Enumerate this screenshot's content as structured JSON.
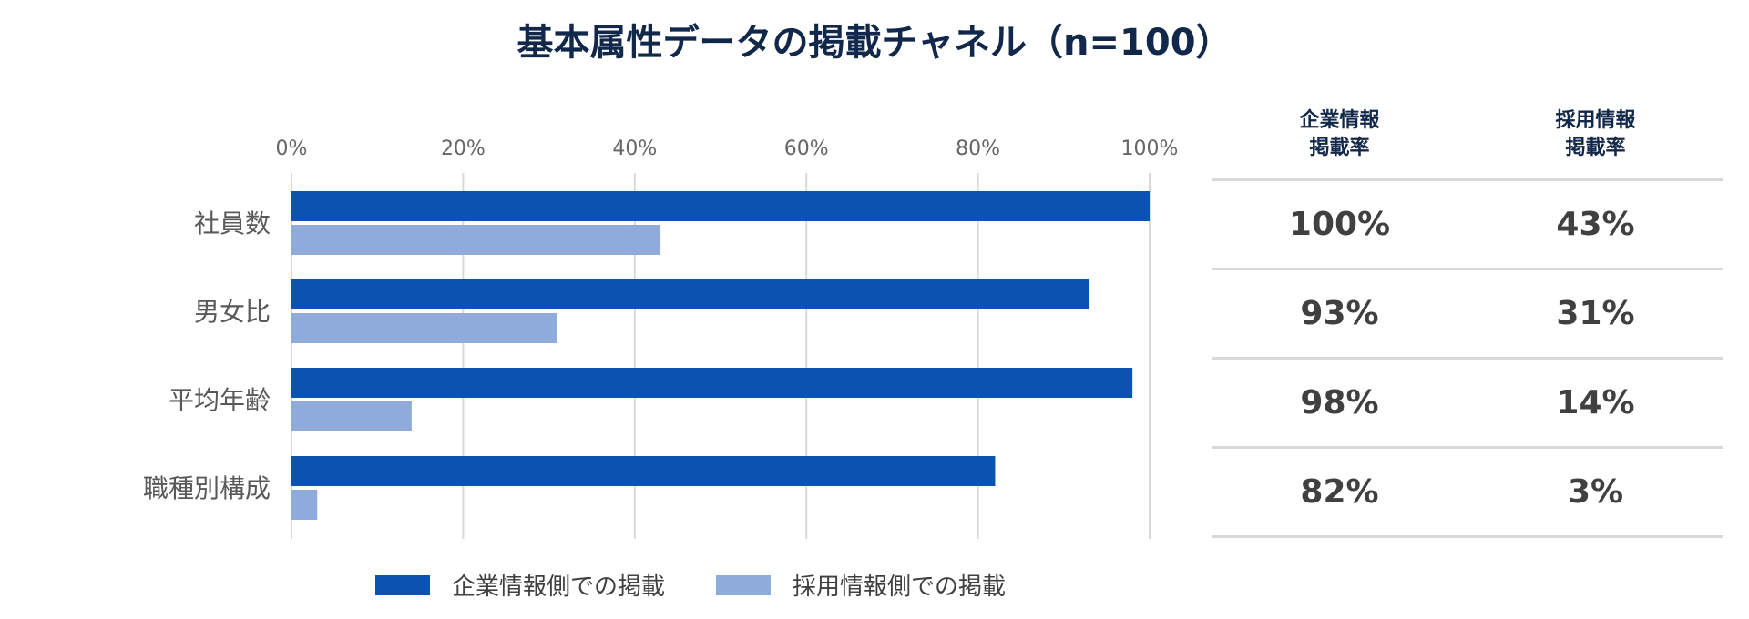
{
  "title": "基本属性データの掲載チャネル（n=100）",
  "colors": {
    "series1": "#0a54b0",
    "series2": "#8fabdc",
    "grid": "#d9d9d9",
    "title": "#12284a"
  },
  "chart_data": {
    "type": "bar",
    "orientation": "horizontal",
    "title": "基本属性データの掲載チャネル（n=100）",
    "categories": [
      "社員数",
      "男女比",
      "平均年齢",
      "職種別構成"
    ],
    "series": [
      {
        "name": "企業情報側での掲載",
        "values": [
          100,
          93,
          98,
          82
        ]
      },
      {
        "name": "採用情報側での掲載",
        "values": [
          43,
          31,
          14,
          3
        ]
      }
    ],
    "xlim": [
      0,
      100
    ],
    "xticks": [
      "0%",
      "20%",
      "40%",
      "60%",
      "80%",
      "100%"
    ],
    "xtick_values": [
      0,
      20,
      40,
      60,
      80,
      100
    ],
    "grid": true,
    "legend": "bottom"
  },
  "table": {
    "headers": [
      [
        "企業情報",
        "掲載率"
      ],
      [
        "採用情報",
        "掲載率"
      ]
    ],
    "rows": [
      [
        "100%",
        "43%"
      ],
      [
        "93%",
        "31%"
      ],
      [
        "98%",
        "14%"
      ],
      [
        "82%",
        "3%"
      ]
    ]
  },
  "legend": [
    {
      "label": "企業情報側での掲載",
      "color": "#0a54b0"
    },
    {
      "label": "採用情報側での掲載",
      "color": "#8fabdc"
    }
  ]
}
